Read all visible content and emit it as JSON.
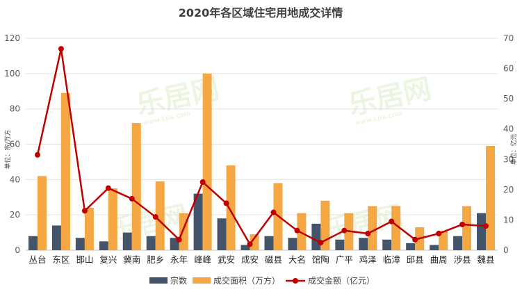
{
  "chart_data": {
    "type": "bar",
    "title": "2020年各区域住宅用地成交详情",
    "categories": [
      "丛台",
      "东区",
      "邯山",
      "复兴",
      "冀南",
      "肥乡",
      "永年",
      "峰峰",
      "武安",
      "成安",
      "磁县",
      "大名",
      "馆陶",
      "广平",
      "鸡泽",
      "临漳",
      "邱县",
      "曲周",
      "涉县",
      "魏县"
    ],
    "series": [
      {
        "name": "宗数",
        "type": "bar",
        "axis": "left",
        "color": "#44546a",
        "values": [
          8,
          14,
          7,
          5,
          10,
          8,
          7,
          32,
          18,
          3,
          8,
          7,
          15,
          6,
          7,
          6,
          4,
          3,
          8,
          21
        ]
      },
      {
        "name": "成交面积（万方）",
        "type": "bar",
        "axis": "left",
        "color": "#f4a742",
        "values": [
          42,
          89,
          24,
          35,
          72,
          39,
          21,
          100,
          48,
          9,
          38,
          21,
          28,
          21,
          25,
          25,
          13,
          11,
          25,
          59
        ]
      },
      {
        "name": "成交金额（亿元）",
        "type": "line",
        "axis": "right",
        "color": "#c00000",
        "values": [
          31.5,
          66.5,
          13,
          20.5,
          17,
          11,
          3.5,
          22.5,
          15.5,
          2,
          12.5,
          6.5,
          2.5,
          6.5,
          5.5,
          9.5,
          3.5,
          5.5,
          8.5,
          8
        ]
      }
    ],
    "ylabel": "单位：宗/万方",
    "y2label": "单位：亿元",
    "ylim": [
      0,
      120
    ],
    "yticks": [
      0,
      20,
      40,
      60,
      80,
      100,
      120
    ],
    "y2lim": [
      0,
      70
    ],
    "y2ticks": [
      0,
      10,
      20,
      30,
      40,
      50,
      60,
      70
    ],
    "grid": true,
    "legend_position": "bottom"
  },
  "watermark": {
    "brand": "乐居网",
    "url": "www.Ljia.com"
  }
}
